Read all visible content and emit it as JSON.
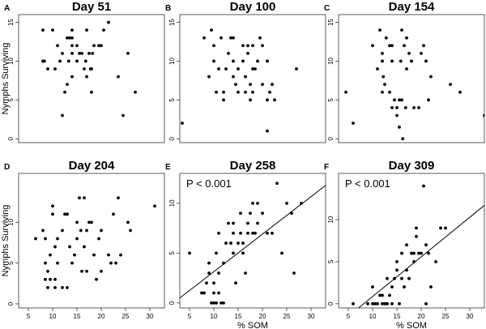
{
  "chart_data": [
    {
      "label": "A",
      "type": "scatter",
      "title": "Day 51",
      "xlabel": "",
      "ylabel": "Nymphs Surviving",
      "xlim": [
        3,
        33
      ],
      "ylim": [
        -0.5,
        16
      ],
      "xticks": [],
      "yticks": [
        0,
        5,
        10,
        15
      ],
      "points": [
        [
          8,
          14
        ],
        [
          8,
          10
        ],
        [
          8.3,
          10
        ],
        [
          9,
          9
        ],
        [
          10,
          14
        ],
        [
          10.5,
          9
        ],
        [
          11,
          12
        ],
        [
          11.5,
          10
        ],
        [
          12,
          3
        ],
        [
          12,
          11
        ],
        [
          12.5,
          6
        ],
        [
          13,
          13
        ],
        [
          13,
          7
        ],
        [
          13.3,
          10
        ],
        [
          13.5,
          13
        ],
        [
          14,
          13
        ],
        [
          14,
          11
        ],
        [
          14,
          12
        ],
        [
          14,
          8
        ],
        [
          14,
          14
        ],
        [
          15,
          10
        ],
        [
          15,
          12
        ],
        [
          15.5,
          11
        ],
        [
          16,
          11
        ],
        [
          16.5,
          9
        ],
        [
          16.8,
          10
        ],
        [
          17,
          8
        ],
        [
          17,
          14
        ],
        [
          17.5,
          11
        ],
        [
          17.8,
          9
        ],
        [
          18,
          6
        ],
        [
          18,
          9
        ],
        [
          18.2,
          11
        ],
        [
          18.5,
          12
        ],
        [
          19.5,
          12
        ],
        [
          20,
          12
        ],
        [
          20.5,
          14
        ],
        [
          21.5,
          15
        ],
        [
          23.5,
          8
        ],
        [
          24.5,
          3
        ],
        [
          25.5,
          11
        ],
        [
          27,
          6
        ]
      ]
    },
    {
      "label": "B",
      "type": "scatter",
      "title": "Day 100",
      "xlabel": "",
      "ylabel": "",
      "xlim": [
        3,
        33
      ],
      "ylim": [
        -0.5,
        16
      ],
      "xticks": [],
      "yticks": [
        0,
        5,
        10,
        15
      ],
      "points": [
        [
          3.5,
          2
        ],
        [
          8,
          13
        ],
        [
          9,
          8
        ],
        [
          9.5,
          14
        ],
        [
          10,
          10
        ],
        [
          10,
          12
        ],
        [
          10.5,
          6
        ],
        [
          11,
          9
        ],
        [
          11.5,
          13
        ],
        [
          12,
          6
        ],
        [
          12,
          5
        ],
        [
          12.5,
          9
        ],
        [
          13,
          11
        ],
        [
          13.5,
          13
        ],
        [
          14,
          10
        ],
        [
          14,
          8
        ],
        [
          14,
          13
        ],
        [
          14.5,
          7
        ],
        [
          15,
          6
        ],
        [
          15,
          9
        ],
        [
          16,
          12
        ],
        [
          16,
          10
        ],
        [
          16.5,
          6
        ],
        [
          16.5,
          8
        ],
        [
          17,
          12
        ],
        [
          17,
          11
        ],
        [
          17.5,
          7
        ],
        [
          17.5,
          5
        ],
        [
          18,
          9
        ],
        [
          18,
          6
        ],
        [
          18,
          12
        ],
        [
          18.5,
          9
        ],
        [
          19,
          10
        ],
        [
          19.5,
          13
        ],
        [
          20,
          7
        ],
        [
          20,
          12
        ],
        [
          21,
          1
        ],
        [
          21,
          10
        ],
        [
          21,
          5
        ],
        [
          21.5,
          6
        ],
        [
          22,
          7
        ],
        [
          22.5,
          5
        ],
        [
          27,
          9
        ]
      ]
    },
    {
      "label": "C",
      "type": "scatter",
      "title": "Day 154",
      "xlabel": "",
      "ylabel": "",
      "xlim": [
        3,
        33
      ],
      "ylim": [
        -0.5,
        16
      ],
      "xticks": [],
      "yticks": [
        0,
        5,
        10,
        15
      ],
      "points": [
        [
          4.5,
          6
        ],
        [
          6,
          2
        ],
        [
          10,
          12
        ],
        [
          11,
          9
        ],
        [
          11.5,
          14
        ],
        [
          12,
          6
        ],
        [
          12,
          10
        ],
        [
          12,
          11
        ],
        [
          12.2,
          8
        ],
        [
          12.5,
          7
        ],
        [
          12.8,
          13
        ],
        [
          13.5,
          12
        ],
        [
          13.5,
          6
        ],
        [
          14,
          10
        ],
        [
          14,
          12
        ],
        [
          14,
          4
        ],
        [
          14.5,
          5
        ],
        [
          15,
          4
        ],
        [
          15,
          3
        ],
        [
          15.5,
          5
        ],
        [
          15.5,
          1.5
        ],
        [
          15.8,
          10
        ],
        [
          16,
          5
        ],
        [
          16,
          14
        ],
        [
          16.2,
          0
        ],
        [
          16.5,
          12
        ],
        [
          16.8,
          4
        ],
        [
          17,
          13
        ],
        [
          17,
          9
        ],
        [
          17.5,
          11
        ],
        [
          18,
          10
        ],
        [
          18.5,
          4
        ],
        [
          19.5,
          4
        ],
        [
          20,
          11
        ],
        [
          20.5,
          12
        ],
        [
          21,
          10
        ],
        [
          21.5,
          5
        ],
        [
          22,
          8
        ],
        [
          26,
          7
        ],
        [
          28,
          6
        ],
        [
          33,
          3
        ]
      ]
    },
    {
      "label": "D",
      "type": "scatter",
      "title": "Day 204",
      "xlabel": "",
      "ylabel": "Nymphs Surviving",
      "xlim": [
        3,
        33
      ],
      "ylim": [
        -0.5,
        16
      ],
      "xticks": [
        5,
        10,
        15,
        20,
        25,
        30
      ],
      "yticks": [
        0,
        5,
        10
      ],
      "points": [
        [
          6.5,
          8
        ],
        [
          8,
          9
        ],
        [
          8.5,
          8
        ],
        [
          8.5,
          5
        ],
        [
          8.5,
          3
        ],
        [
          9,
          4
        ],
        [
          9,
          2
        ],
        [
          9.5,
          3
        ],
        [
          9.5,
          6
        ],
        [
          10,
          12
        ],
        [
          10,
          11
        ],
        [
          10.5,
          2
        ],
        [
          10.5,
          7
        ],
        [
          10.5,
          3
        ],
        [
          11,
          5
        ],
        [
          11,
          8
        ],
        [
          12,
          2
        ],
        [
          12,
          9
        ],
        [
          12.5,
          11
        ],
        [
          13,
          11
        ],
        [
          13,
          2
        ],
        [
          13.5,
          7
        ],
        [
          14,
          5
        ],
        [
          14.5,
          6
        ],
        [
          15,
          10
        ],
        [
          15,
          8
        ],
        [
          15.5,
          13
        ],
        [
          15.8,
          9
        ],
        [
          16,
          4
        ],
        [
          16.5,
          13
        ],
        [
          16.5,
          7
        ],
        [
          17,
          9
        ],
        [
          17,
          4
        ],
        [
          17.5,
          10
        ],
        [
          18,
          10
        ],
        [
          18.5,
          6
        ],
        [
          19,
          3
        ],
        [
          19.5,
          8
        ],
        [
          20,
          4
        ],
        [
          20,
          9
        ],
        [
          21.5,
          6
        ],
        [
          22,
          5
        ],
        [
          22.5,
          11
        ],
        [
          23,
          5
        ],
        [
          23.5,
          13
        ],
        [
          24,
          6
        ],
        [
          25.5,
          10
        ],
        [
          26,
          9
        ],
        [
          31,
          12
        ]
      ]
    },
    {
      "label": "E",
      "type": "scatter",
      "title": "Day 258",
      "xlabel": "% SOM",
      "ylabel": "",
      "annotation": "P < 0.001",
      "xlim": [
        3,
        33
      ],
      "ylim": [
        -0.5,
        13
      ],
      "xticks": [
        5,
        10,
        15,
        20,
        25,
        30
      ],
      "yticks": [
        0,
        5,
        10
      ],
      "fit_line": {
        "x": [
          3,
          33
        ],
        "y": [
          0.5,
          11.8
        ]
      },
      "points": [
        [
          5,
          5
        ],
        [
          7.5,
          1
        ],
        [
          8,
          1
        ],
        [
          8.5,
          2
        ],
        [
          9,
          3
        ],
        [
          9,
          4
        ],
        [
          9.5,
          0
        ],
        [
          10,
          0
        ],
        [
          10,
          1
        ],
        [
          10,
          2
        ],
        [
          10.5,
          0
        ],
        [
          10.5,
          5
        ],
        [
          11,
          7
        ],
        [
          11,
          3
        ],
        [
          11,
          1
        ],
        [
          11.5,
          0
        ],
        [
          12,
          0
        ],
        [
          12,
          4
        ],
        [
          12.5,
          6
        ],
        [
          13,
          8
        ],
        [
          13.5,
          6
        ],
        [
          14,
          5
        ],
        [
          14,
          7
        ],
        [
          14,
          8
        ],
        [
          14.5,
          2
        ],
        [
          15,
          6
        ],
        [
          15.5,
          9
        ],
        [
          15.5,
          7
        ],
        [
          16,
          6
        ],
        [
          16,
          5
        ],
        [
          16.5,
          3
        ],
        [
          17,
          8
        ],
        [
          17,
          7
        ],
        [
          17.5,
          9
        ],
        [
          18,
          7
        ],
        [
          18,
          10
        ],
        [
          18.5,
          7
        ],
        [
          19,
          10
        ],
        [
          19,
          8
        ],
        [
          20,
          9
        ],
        [
          21,
          7
        ],
        [
          22,
          7
        ],
        [
          23,
          12
        ],
        [
          24,
          5
        ],
        [
          25,
          10
        ],
        [
          26,
          9
        ],
        [
          26.5,
          3
        ],
        [
          28,
          10
        ]
      ]
    },
    {
      "label": "F",
      "type": "scatter",
      "title": "Day 309",
      "xlabel": "% SOM",
      "ylabel": "",
      "annotation": "P < 0.001",
      "xlim": [
        3,
        33
      ],
      "ylim": [
        -0.5,
        15.5
      ],
      "xticks": [
        5,
        10,
        15,
        20,
        25,
        30
      ],
      "yticks": [
        0,
        5,
        10
      ],
      "fit_line": {
        "x": [
          5,
          33
        ],
        "y": [
          -1.5,
          11.7
        ]
      },
      "points": [
        [
          6,
          0
        ],
        [
          9,
          0
        ],
        [
          10,
          0
        ],
        [
          10,
          2
        ],
        [
          10.5,
          0
        ],
        [
          11,
          0
        ],
        [
          11.5,
          1
        ],
        [
          12,
          0
        ],
        [
          12,
          1
        ],
        [
          12.5,
          0
        ],
        [
          13,
          0
        ],
        [
          13,
          3
        ],
        [
          13.5,
          1
        ],
        [
          14,
          0
        ],
        [
          14,
          2
        ],
        [
          14.5,
          3
        ],
        [
          15,
          4
        ],
        [
          15,
          5
        ],
        [
          15.5,
          0
        ],
        [
          16,
          6
        ],
        [
          16,
          3
        ],
        [
          16.5,
          2
        ],
        [
          17,
          7
        ],
        [
          17,
          4
        ],
        [
          17.5,
          3
        ],
        [
          18,
          6
        ],
        [
          18.5,
          6
        ],
        [
          18.5,
          5
        ],
        [
          19,
          8
        ],
        [
          19,
          9
        ],
        [
          19.5,
          6
        ],
        [
          20,
          6
        ],
        [
          20.5,
          14
        ],
        [
          21,
          7
        ],
        [
          21,
          0
        ],
        [
          21.5,
          6
        ],
        [
          22,
          2
        ],
        [
          23,
          5
        ],
        [
          24,
          9
        ],
        [
          25,
          9
        ]
      ]
    }
  ]
}
